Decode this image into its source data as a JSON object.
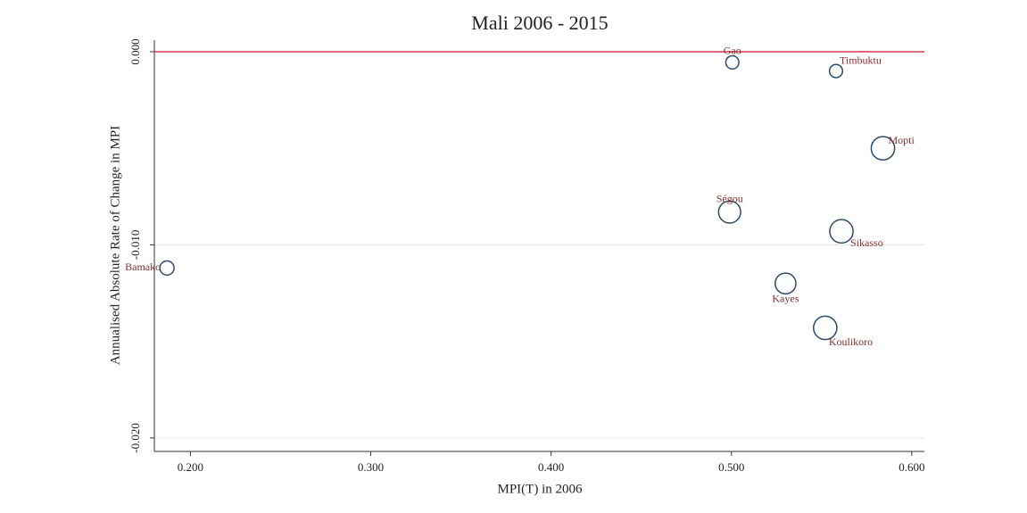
{
  "chart_data": {
    "type": "bubble",
    "title": "Mali 2006 - 2015",
    "x_label": "MPI(T) in 2006",
    "y_label": "Annualised Absolute Rate of Change in MPI",
    "labels": [
      "Gao",
      "Timbuktu",
      "Mopti",
      "Ségou",
      "Sikasso",
      "Bamako",
      "Kayes",
      "Koulikoro"
    ],
    "x": [
      0.5005,
      0.558,
      0.584,
      0.499,
      0.561,
      0.187,
      0.53,
      0.552
    ],
    "values": [
      -0.00055,
      -0.001,
      -0.005,
      -0.0083,
      -0.0093,
      -0.0112,
      -0.012,
      -0.0143
    ],
    "sizes": [
      0.6,
      0.6,
      1.9,
      1.7,
      1.9,
      0.7,
      1.5,
      1.9
    ],
    "color": "#2d4a6b",
    "label_color": "#8b2e2e",
    "xlim": [
      0.18,
      0.607
    ],
    "ylim": [
      -0.0207,
      0.0006
    ],
    "xticks": [
      {
        "value": 0.2,
        "label": "0.200"
      },
      {
        "value": 0.3,
        "label": "0.300"
      },
      {
        "value": 0.4,
        "label": "0.400"
      },
      {
        "value": 0.5,
        "label": "0.500"
      },
      {
        "value": 0.6,
        "label": "0.600"
      }
    ],
    "yticks": [
      {
        "value": 0,
        "label": "0.000"
      },
      {
        "value": -0.01,
        "label": "-0.010"
      },
      {
        "value": -0.02,
        "label": "-0.020"
      }
    ],
    "grid": true,
    "reference_line": {
      "value": 0,
      "color": "#d23a4e"
    }
  }
}
